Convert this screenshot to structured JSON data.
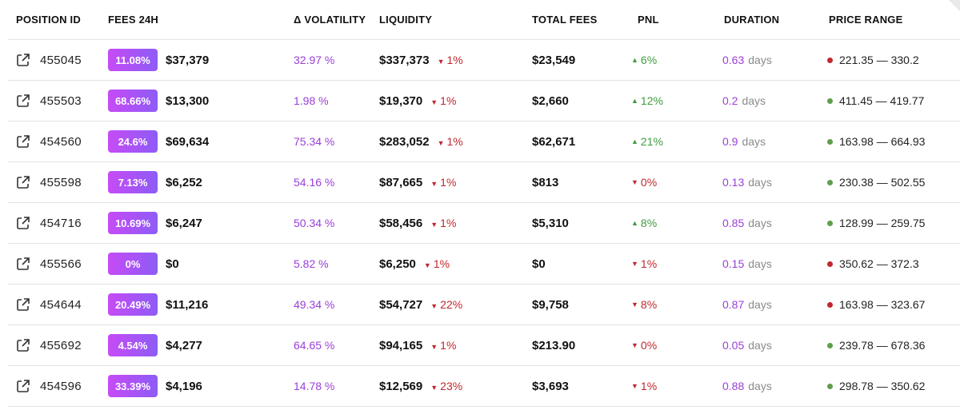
{
  "colors": {
    "badge_start": "#c64bf6",
    "badge_end": "#8d5cf6",
    "purple_text": "#9a3fd8",
    "down": "#c1272d",
    "up": "#3f9b3f"
  },
  "headers": {
    "position_id": "POSITION ID",
    "fees_24h": "FEES 24H",
    "volatility": "Δ VOLATILITY",
    "liquidity": "LIQUIDITY",
    "total_fees": "TOTAL FEES",
    "pnl": "PNL",
    "duration": "DURATION",
    "price_range": "PRICE RANGE"
  },
  "rows": [
    {
      "id": "455045",
      "fee_pct": "11.08%",
      "fee_usd": "$37,379",
      "volatility": "32.97 %",
      "liquidity": "$337,373",
      "liq_change": "1%",
      "liq_dir": "down",
      "total_fees": "$23,549",
      "pnl": "6%",
      "pnl_dir": "up",
      "duration": "0.63",
      "duration_unit": "days",
      "range_status": "red",
      "range": "221.35 — 330.2"
    },
    {
      "id": "455503",
      "fee_pct": "68.66%",
      "fee_usd": "$13,300",
      "volatility": "1.98 %",
      "liquidity": "$19,370",
      "liq_change": "1%",
      "liq_dir": "down",
      "total_fees": "$2,660",
      "pnl": "12%",
      "pnl_dir": "up",
      "duration": "0.2",
      "duration_unit": "days",
      "range_status": "green",
      "range": "411.45 — 419.77"
    },
    {
      "id": "454560",
      "fee_pct": "24.6%",
      "fee_usd": "$69,634",
      "volatility": "75.34 %",
      "liquidity": "$283,052",
      "liq_change": "1%",
      "liq_dir": "down",
      "total_fees": "$62,671",
      "pnl": "21%",
      "pnl_dir": "up",
      "duration": "0.9",
      "duration_unit": "days",
      "range_status": "green",
      "range": "163.98 — 664.93"
    },
    {
      "id": "455598",
      "fee_pct": "7.13%",
      "fee_usd": "$6,252",
      "volatility": "54.16 %",
      "liquidity": "$87,665",
      "liq_change": "1%",
      "liq_dir": "down",
      "total_fees": "$813",
      "pnl": "0%",
      "pnl_dir": "down",
      "duration": "0.13",
      "duration_unit": "days",
      "range_status": "green",
      "range": "230.38 — 502.55"
    },
    {
      "id": "454716",
      "fee_pct": "10.69%",
      "fee_usd": "$6,247",
      "volatility": "50.34 %",
      "liquidity": "$58,456",
      "liq_change": "1%",
      "liq_dir": "down",
      "total_fees": "$5,310",
      "pnl": "8%",
      "pnl_dir": "up",
      "duration": "0.85",
      "duration_unit": "days",
      "range_status": "green",
      "range": "128.99 — 259.75"
    },
    {
      "id": "455566",
      "fee_pct": "0%",
      "fee_usd": "$0",
      "volatility": "5.82 %",
      "liquidity": "$6,250",
      "liq_change": "1%",
      "liq_dir": "down",
      "total_fees": "$0",
      "pnl": "1%",
      "pnl_dir": "down",
      "duration": "0.15",
      "duration_unit": "days",
      "range_status": "red",
      "range": "350.62 — 372.3"
    },
    {
      "id": "454644",
      "fee_pct": "20.49%",
      "fee_usd": "$11,216",
      "volatility": "49.34 %",
      "liquidity": "$54,727",
      "liq_change": "22%",
      "liq_dir": "down",
      "total_fees": "$9,758",
      "pnl": "8%",
      "pnl_dir": "down",
      "duration": "0.87",
      "duration_unit": "days",
      "range_status": "red",
      "range": "163.98 — 323.67"
    },
    {
      "id": "455692",
      "fee_pct": "4.54%",
      "fee_usd": "$4,277",
      "volatility": "64.65 %",
      "liquidity": "$94,165",
      "liq_change": "1%",
      "liq_dir": "down",
      "total_fees": "$213.90",
      "pnl": "0%",
      "pnl_dir": "down",
      "duration": "0.05",
      "duration_unit": "days",
      "range_status": "green",
      "range": "239.78 — 678.36"
    },
    {
      "id": "454596",
      "fee_pct": "33.39%",
      "fee_usd": "$4,196",
      "volatility": "14.78 %",
      "liquidity": "$12,569",
      "liq_change": "23%",
      "liq_dir": "down",
      "total_fees": "$3,693",
      "pnl": "1%",
      "pnl_dir": "down",
      "duration": "0.88",
      "duration_unit": "days",
      "range_status": "green",
      "range": "298.78 — 350.62"
    }
  ]
}
